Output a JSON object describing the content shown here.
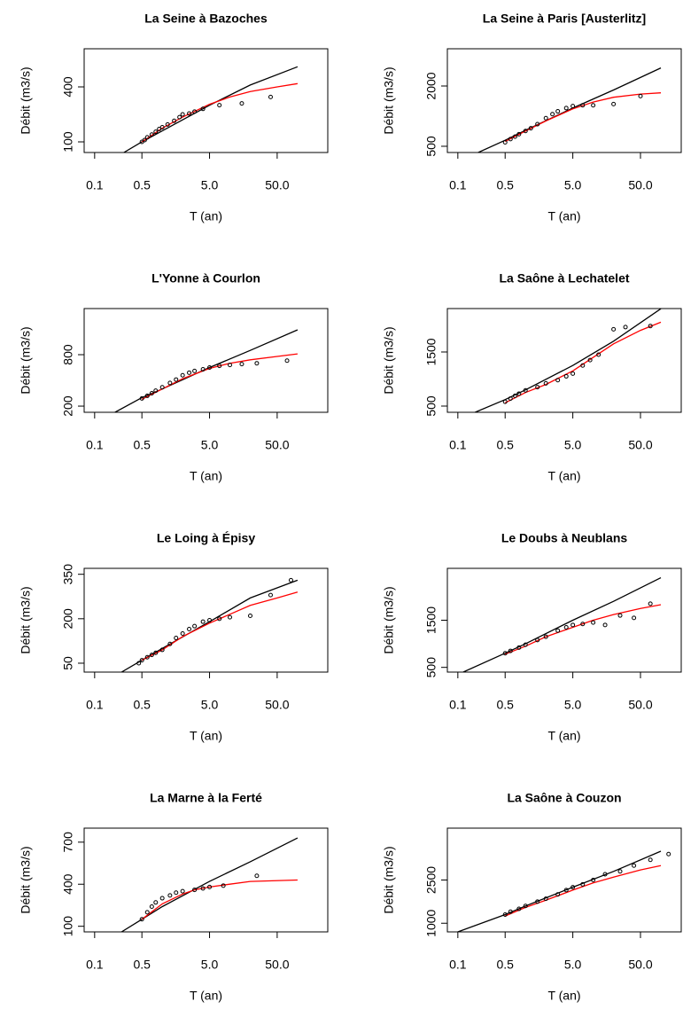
{
  "chart_data": [
    {
      "type": "line",
      "title": "La Seine à Bazoches",
      "xlabel": "T (an)",
      "ylabel": "Débit (m3/s)",
      "xlog": true,
      "xlim": [
        0.07,
        280
      ],
      "ylim": [
        42,
        608
      ],
      "xticks": [
        0.1,
        0.5,
        {
          "value": 5,
          "label": "5.0"
        },
        {
          "value": 50,
          "label": "50.0"
        }
      ],
      "yticks": [
        100,
        400
      ],
      "series": [
        {
          "color": "#000000",
          "style": "line",
          "x": [
            0.27,
            0.5,
            1,
            5,
            20,
            100
          ],
          "values": [
            42,
            100,
            160,
            300,
            410,
            510
          ]
        },
        {
          "color": "#ff0000",
          "style": "line",
          "x": [
            0.5,
            1,
            2,
            5,
            10,
            20,
            50,
            100
          ],
          "values": [
            100,
            175,
            235,
            305,
            345,
            375,
            400,
            418
          ]
        },
        {
          "color": "#000000",
          "style": "points",
          "x": [
            0.5,
            0.55,
            0.6,
            0.7,
            0.8,
            0.9,
            1,
            1.2,
            1.5,
            1.8,
            2,
            2.5,
            3,
            4,
            7,
            15,
            40
          ],
          "values": [
            100,
            110,
            125,
            140,
            155,
            170,
            180,
            195,
            215,
            235,
            250,
            255,
            265,
            280,
            300,
            310,
            345
          ]
        }
      ]
    },
    {
      "type": "line",
      "title": "La Seine à Paris [Austerlitz]",
      "xlabel": "T (an)",
      "ylabel": "Débit (m3/s)",
      "xlog": true,
      "xlim": [
        0.07,
        200
      ],
      "ylim": [
        345,
        2927
      ],
      "xticks": [
        0.1,
        0.5,
        {
          "value": 5,
          "label": "5.0"
        },
        {
          "value": 50,
          "label": "50.0"
        }
      ],
      "yticks": [
        500,
        2000
      ],
      "series": [
        {
          "color": "#000000",
          "style": "line",
          "x": [
            0.2,
            0.5,
            1,
            5,
            20,
            100
          ],
          "values": [
            345,
            650,
            900,
            1450,
            1900,
            2450
          ]
        },
        {
          "color": "#ff0000",
          "style": "line",
          "x": [
            0.5,
            1,
            2,
            5,
            10,
            20,
            50,
            100
          ],
          "values": [
            620,
            880,
            1130,
            1430,
            1600,
            1720,
            1800,
            1830
          ]
        },
        {
          "color": "#000000",
          "style": "points",
          "x": [
            0.5,
            0.6,
            0.7,
            0.8,
            1,
            1.2,
            1.5,
            2,
            2.5,
            3,
            4,
            5,
            7,
            10,
            20,
            50
          ],
          "values": [
            600,
            680,
            740,
            800,
            880,
            950,
            1050,
            1200,
            1300,
            1370,
            1450,
            1500,
            1520,
            1520,
            1550,
            1750
          ]
        }
      ]
    },
    {
      "type": "line",
      "title": "L'Yonne à Courlon",
      "xlabel": "T (an)",
      "ylabel": "Débit (m3/s)",
      "xlog": true,
      "xlim": [
        0.07,
        280
      ],
      "ylim": [
        128,
        1338
      ],
      "xticks": [
        0.1,
        0.5,
        {
          "value": 5,
          "label": "5.0"
        },
        {
          "value": 50,
          "label": "50.0"
        }
      ],
      "yticks": [
        200,
        800
      ],
      "series": [
        {
          "color": "#000000",
          "style": "line",
          "x": [
            0.2,
            0.5,
            1,
            5,
            20,
            100
          ],
          "values": [
            128,
            300,
            400,
            650,
            850,
            1090
          ]
        },
        {
          "color": "#ff0000",
          "style": "line",
          "x": [
            0.5,
            1,
            2,
            5,
            10,
            20,
            50,
            100
          ],
          "values": [
            280,
            400,
            520,
            640,
            700,
            740,
            780,
            810
          ]
        },
        {
          "color": "#000000",
          "style": "points",
          "x": [
            0.5,
            0.6,
            0.7,
            0.8,
            1,
            1.3,
            1.6,
            2,
            2.5,
            3,
            4,
            5,
            7,
            10,
            15,
            25,
            70
          ],
          "values": [
            290,
            320,
            350,
            380,
            420,
            470,
            510,
            560,
            590,
            610,
            630,
            650,
            670,
            680,
            690,
            700,
            730
          ]
        }
      ]
    },
    {
      "type": "line",
      "title": "La Saône à Lechatelet",
      "xlabel": "T (an)",
      "ylabel": "Débit (m3/s)",
      "xlog": true,
      "xlim": [
        0.07,
        200
      ],
      "ylim": [
        385,
        2303
      ],
      "xticks": [
        0.1,
        0.5,
        {
          "value": 5,
          "label": "5.0"
        },
        {
          "value": 50,
          "label": "50.0"
        }
      ],
      "yticks": [
        500,
        1500
      ],
      "series": [
        {
          "color": "#000000",
          "style": "line",
          "x": [
            0.18,
            0.5,
            1,
            5,
            20,
            100
          ],
          "values": [
            385,
            620,
            800,
            1250,
            1700,
            2300
          ]
        },
        {
          "color": "#ff0000",
          "style": "line",
          "x": [
            0.5,
            1,
            2,
            5,
            10,
            20,
            50,
            100
          ],
          "values": [
            560,
            750,
            900,
            1150,
            1400,
            1650,
            1900,
            2050
          ]
        },
        {
          "color": "#000000",
          "style": "points",
          "x": [
            0.5,
            0.6,
            0.7,
            0.8,
            1,
            1.5,
            2,
            3,
            4,
            5,
            7,
            9,
            12,
            20,
            30,
            70
          ],
          "values": [
            580,
            640,
            690,
            730,
            790,
            850,
            920,
            980,
            1050,
            1100,
            1250,
            1350,
            1450,
            1920,
            1960,
            1980
          ]
        }
      ]
    },
    {
      "type": "line",
      "title": "Le Loing à Épisy",
      "xlabel": "T (an)",
      "ylabel": "Débit (m3/s)",
      "xlog": true,
      "xlim": [
        0.07,
        280
      ],
      "ylim": [
        20,
        370
      ],
      "xticks": [
        0.1,
        0.5,
        {
          "value": 5,
          "label": "5.0"
        },
        {
          "value": 50,
          "label": "50.0"
        }
      ],
      "yticks": [
        50,
        200,
        350
      ],
      "series": [
        {
          "color": "#000000",
          "style": "line",
          "x": [
            0.25,
            0.5,
            1,
            5,
            20,
            100
          ],
          "values": [
            20,
            60,
            100,
            190,
            270,
            330
          ]
        },
        {
          "color": "#ff0000",
          "style": "line",
          "x": [
            0.5,
            1,
            2,
            5,
            10,
            20,
            50,
            100
          ],
          "values": [
            60,
            95,
            140,
            185,
            215,
            245,
            270,
            290
          ]
        },
        {
          "color": "#000000",
          "style": "points",
          "x": [
            0.45,
            0.5,
            0.6,
            0.7,
            0.8,
            1,
            1.3,
            1.6,
            2,
            2.5,
            3,
            4,
            5,
            7,
            10,
            20,
            40,
            80
          ],
          "values": [
            50,
            60,
            70,
            78,
            85,
            95,
            115,
            135,
            150,
            165,
            175,
            190,
            195,
            200,
            205,
            210,
            280,
            330
          ]
        }
      ]
    },
    {
      "type": "line",
      "title": "Le Doubs à Neublans",
      "xlabel": "T (an)",
      "ylabel": "Débit (m3/s)",
      "xlog": true,
      "xlim": [
        0.07,
        200
      ],
      "ylim": [
        400,
        2600
      ],
      "xticks": [
        0.1,
        0.5,
        {
          "value": 5,
          "label": "5.0"
        },
        {
          "value": 50,
          "label": "50.0"
        }
      ],
      "yticks": [
        500,
        1500
      ],
      "series": [
        {
          "color": "#000000",
          "style": "line",
          "x": [
            0.12,
            0.5,
            1,
            5,
            20,
            100
          ],
          "values": [
            400,
            800,
            1000,
            1500,
            1900,
            2400
          ]
        },
        {
          "color": "#ff0000",
          "style": "line",
          "x": [
            0.5,
            1,
            2,
            5,
            10,
            20,
            50,
            100
          ],
          "values": [
            780,
            950,
            1150,
            1350,
            1500,
            1620,
            1750,
            1830
          ]
        },
        {
          "color": "#000000",
          "style": "points",
          "x": [
            0.5,
            0.6,
            0.8,
            1,
            1.5,
            2,
            3,
            4,
            5,
            7,
            10,
            15,
            25,
            40,
            70
          ],
          "values": [
            800,
            850,
            920,
            980,
            1080,
            1150,
            1280,
            1350,
            1400,
            1420,
            1450,
            1400,
            1600,
            1550,
            1850
          ]
        }
      ]
    },
    {
      "type": "line",
      "title": "La Marne à la Ferté",
      "xlabel": "T (an)",
      "ylabel": "Débit (m3/s)",
      "xlog": true,
      "xlim": [
        0.07,
        280
      ],
      "ylim": [
        60,
        800
      ],
      "xticks": [
        0.1,
        0.5,
        {
          "value": 5,
          "label": "5.0"
        },
        {
          "value": 50,
          "label": "50.0"
        }
      ],
      "yticks": [
        100,
        400,
        700
      ],
      "series": [
        {
          "color": "#000000",
          "style": "line",
          "x": [
            0.25,
            0.5,
            1,
            5,
            20,
            100
          ],
          "values": [
            60,
            150,
            240,
            420,
            560,
            730
          ]
        },
        {
          "color": "#ff0000",
          "style": "line",
          "x": [
            0.5,
            1,
            2,
            3,
            5,
            10,
            20,
            100
          ],
          "values": [
            150,
            260,
            330,
            360,
            380,
            400,
            420,
            430
          ]
        },
        {
          "color": "#000000",
          "style": "points",
          "x": [
            0.5,
            0.6,
            0.7,
            0.8,
            1,
            1.3,
            1.6,
            2,
            3,
            4,
            5,
            8,
            25
          ],
          "values": [
            150,
            200,
            240,
            270,
            300,
            320,
            340,
            350,
            360,
            370,
            380,
            390,
            460
          ]
        }
      ]
    },
    {
      "type": "line",
      "title": "La Saône à Couzon",
      "xlabel": "T (an)",
      "ylabel": "Débit (m3/s)",
      "xlog": true,
      "xlim": [
        0.07,
        200
      ],
      "ylim": [
        700,
        4300
      ],
      "xticks": [
        0.1,
        0.5,
        {
          "value": 5,
          "label": "5.0"
        },
        {
          "value": 50,
          "label": "50.0"
        }
      ],
      "yticks": [
        1000,
        2500
      ],
      "series": [
        {
          "color": "#000000",
          "style": "line",
          "x": [
            0.1,
            0.5,
            1,
            5,
            20,
            100
          ],
          "values": [
            700,
            1300,
            1600,
            2250,
            2800,
            3500
          ]
        },
        {
          "color": "#ff0000",
          "style": "line",
          "x": [
            0.5,
            1,
            2,
            5,
            10,
            20,
            50,
            100
          ],
          "values": [
            1250,
            1550,
            1800,
            2150,
            2400,
            2600,
            2850,
            3000
          ]
        },
        {
          "color": "#000000",
          "style": "points",
          "x": [
            0.5,
            0.6,
            0.8,
            1,
            1.5,
            2,
            3,
            4,
            5,
            7,
            10,
            15,
            25,
            40,
            70,
            130
          ],
          "values": [
            1300,
            1400,
            1500,
            1600,
            1750,
            1850,
            2000,
            2150,
            2250,
            2350,
            2500,
            2700,
            2800,
            3000,
            3200,
            3400
          ]
        }
      ]
    }
  ]
}
